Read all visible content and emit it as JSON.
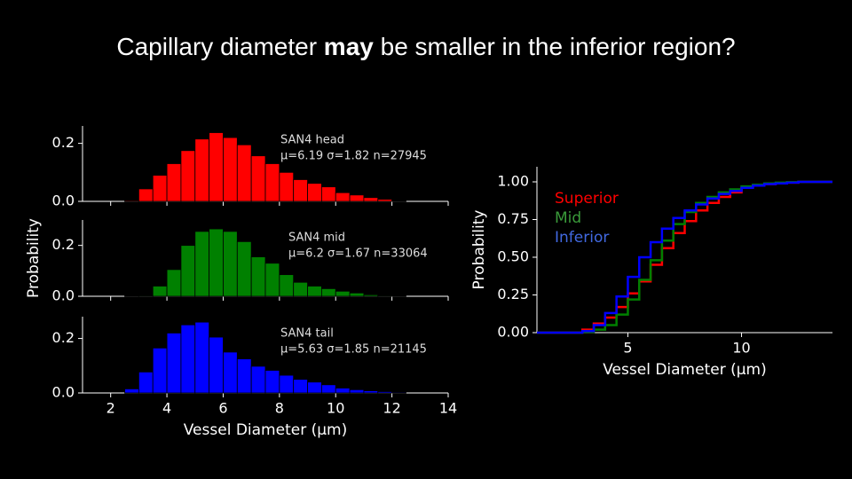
{
  "slide_title": {
    "before": "Capillary diameter ",
    "bold": "may",
    "after": " be smaller in the inferior region?"
  },
  "chart_data": [
    {
      "type": "histogram",
      "annotation": [
        "SAN4 head",
        "μ=6.19 σ=1.82 n=27945"
      ],
      "color": "#ff0000",
      "bins": [
        2.5,
        3,
        3.5,
        4,
        4.5,
        5,
        5.5,
        6,
        6.5,
        7,
        7.5,
        8,
        8.5,
        9,
        9.5,
        10,
        10.5,
        11,
        11.5,
        12,
        12.5
      ],
      "values": [
        0.003,
        0.043,
        0.09,
        0.13,
        0.175,
        0.215,
        0.237,
        0.22,
        0.195,
        0.157,
        0.13,
        0.1,
        0.075,
        0.062,
        0.05,
        0.03,
        0.022,
        0.013,
        0.007,
        0.002
      ],
      "xlim": [
        1,
        14
      ],
      "xticks": [
        2,
        4,
        6,
        8,
        10,
        12,
        14
      ],
      "ylim": [
        0,
        0.26
      ],
      "yticks": [
        {
          "value": 0,
          "label": "0.0"
        },
        0.2
      ]
    },
    {
      "type": "histogram",
      "annotation": [
        "SAN4 mid",
        "μ=6.2 σ=1.67 n=33064"
      ],
      "color": "#008000",
      "ylabel": "Probability",
      "bins": [
        2.5,
        3,
        3.5,
        4,
        4.5,
        5,
        5.5,
        6,
        6.5,
        7,
        7.5,
        8,
        8.5,
        9,
        9.5,
        10,
        10.5,
        11,
        11.5,
        12,
        12.5
      ],
      "values": [
        0.001,
        0.003,
        0.04,
        0.105,
        0.2,
        0.255,
        0.265,
        0.255,
        0.215,
        0.155,
        0.13,
        0.085,
        0.055,
        0.04,
        0.03,
        0.02,
        0.013,
        0.006,
        0.003,
        0.001
      ],
      "xlim": [
        1,
        14
      ],
      "xticks": [
        2,
        4,
        6,
        8,
        10,
        12,
        14
      ],
      "ylim": [
        0,
        0.3
      ],
      "yticks": [
        {
          "value": 0,
          "label": "0.0"
        },
        0.2
      ]
    },
    {
      "type": "histogram",
      "annotation": [
        "SAN4 tail",
        "μ=5.63 σ=1.85 n=21145"
      ],
      "color": "#0000ff",
      "xlabel": "Vessel Diameter (μm)",
      "bins": [
        2.5,
        3,
        3.5,
        4,
        4.5,
        5,
        5.5,
        6,
        6.5,
        7,
        7.5,
        8,
        8.5,
        9,
        9.5,
        10,
        10.5,
        11,
        11.5,
        12,
        12.5
      ],
      "values": [
        0.015,
        0.077,
        0.165,
        0.22,
        0.25,
        0.26,
        0.205,
        0.15,
        0.125,
        0.098,
        0.083,
        0.065,
        0.05,
        0.04,
        0.03,
        0.018,
        0.012,
        0.008,
        0.005,
        0.003
      ],
      "xlim": [
        1,
        14
      ],
      "xticks": [
        2,
        4,
        6,
        8,
        10,
        12,
        14
      ],
      "ylim": [
        0,
        0.28
      ],
      "yticks": [
        {
          "value": 0,
          "label": "0.0"
        },
        0.2
      ],
      "show_xtick_labels": true
    },
    {
      "type": "step",
      "xlabel": "Vessel Diameter (μm)",
      "ylabel": "Probability",
      "legend": "upper left",
      "x": [
        1,
        3,
        3.5,
        4,
        4.5,
        5,
        5.5,
        6,
        6.5,
        7,
        7.5,
        8,
        8.5,
        9,
        9.5,
        10,
        10.5,
        11,
        11.5,
        12,
        12.5,
        14
      ],
      "series": [
        {
          "name": "Superior",
          "color": "#ff0000",
          "label_color": "#ff0000",
          "values": [
            0,
            0.02,
            0.06,
            0.1,
            0.17,
            0.26,
            0.34,
            0.45,
            0.56,
            0.66,
            0.74,
            0.81,
            0.86,
            0.9,
            0.93,
            0.96,
            0.975,
            0.985,
            0.99,
            0.995,
            1.0,
            1.0
          ]
        },
        {
          "name": "Mid",
          "color": "#008000",
          "label_color": "#3a9a3a",
          "values": [
            0,
            0.005,
            0.02,
            0.05,
            0.12,
            0.22,
            0.35,
            0.48,
            0.61,
            0.72,
            0.8,
            0.86,
            0.9,
            0.93,
            0.95,
            0.97,
            0.98,
            0.99,
            0.995,
            0.998,
            1.0,
            1.0
          ]
        },
        {
          "name": "Inferior",
          "color": "#0000ff",
          "label_color": "#4169e1",
          "values": [
            0,
            0.01,
            0.05,
            0.13,
            0.24,
            0.37,
            0.5,
            0.6,
            0.69,
            0.76,
            0.81,
            0.85,
            0.89,
            0.92,
            0.94,
            0.96,
            0.975,
            0.985,
            0.99,
            0.995,
            1.0,
            1.0
          ]
        }
      ],
      "xlim": [
        1,
        14
      ],
      "xticks": [
        5,
        10
      ],
      "ylim": [
        0,
        1.1
      ],
      "yticks": [
        {
          "value": 0,
          "label": "0.00"
        },
        {
          "value": 0.25,
          "label": "0.25"
        },
        {
          "value": 0.5,
          "label": "0.50"
        },
        {
          "value": 0.75,
          "label": "0.75"
        },
        {
          "value": 1,
          "label": "1.00"
        }
      ]
    }
  ]
}
